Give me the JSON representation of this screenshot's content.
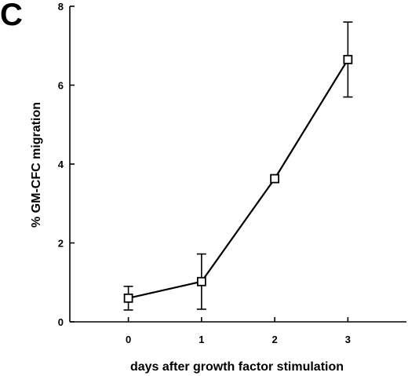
{
  "panel_label": "C",
  "chart_data": {
    "type": "line",
    "xlabel": "days after growth factor stimulation",
    "ylabel": "% GM-CFC migration",
    "xlim": [
      -0.8,
      3.8
    ],
    "ylim": [
      0,
      8
    ],
    "xticks": [
      0,
      1,
      2,
      3
    ],
    "yticks": [
      0,
      2,
      4,
      6,
      8
    ],
    "grid": false,
    "marker": "open-square",
    "series": [
      {
        "x": [
          0,
          1,
          2,
          3
        ],
        "y": [
          0.6,
          1.02,
          3.63,
          6.65
        ],
        "yerr_low": [
          0.3,
          0.32,
          3.63,
          5.7
        ],
        "yerr_high": [
          0.9,
          1.72,
          3.63,
          7.6
        ]
      }
    ]
  }
}
